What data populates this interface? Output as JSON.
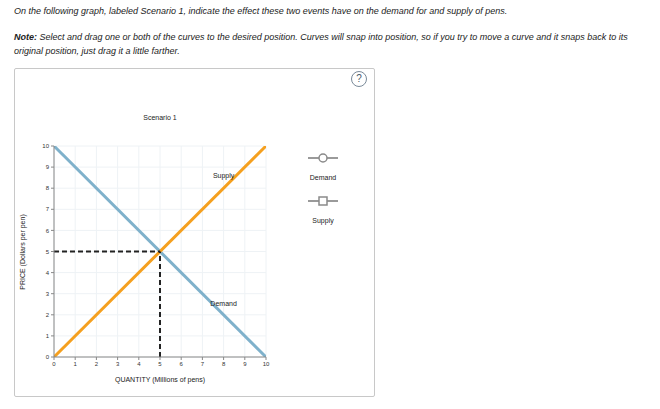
{
  "instruction": "On the following graph, labeled Scenario 1, indicate the effect these two events have on the demand for and supply of pens.",
  "note_label": "Note:",
  "note": "Select and drag one or both of the curves to the desired position. Curves will snap into position, so if you try to move a curve and it snaps back to its original position, just drag it a little farther.",
  "help": "?",
  "chart_data": {
    "type": "line",
    "title": "Scenario 1",
    "x_label": "QUANTITY (Millions of pens)",
    "y_label": "PRICE (Dollars per pen)",
    "xlim": [
      0,
      10
    ],
    "ylim": [
      0,
      10
    ],
    "xticks": [
      0,
      1,
      2,
      3,
      4,
      5,
      6,
      7,
      8,
      9,
      10
    ],
    "yticks": [
      0,
      1,
      2,
      3,
      4,
      5,
      6,
      7,
      8,
      9,
      10
    ],
    "grid": true,
    "legend": "right",
    "series": [
      {
        "name": "Demand",
        "color": "#7fb1cb",
        "marker": "circle",
        "x": [
          0,
          10
        ],
        "values": [
          10,
          0
        ]
      },
      {
        "name": "Supply",
        "color": "#f5a01f",
        "marker": "square",
        "x": [
          0,
          10
        ],
        "values": [
          0,
          10
        ]
      }
    ],
    "annotations": [
      {
        "text": "Supply",
        "x": 8.0,
        "y": 8.6
      },
      {
        "text": "Demand",
        "x": 8.0,
        "y": 2.55
      }
    ],
    "equilibrium": {
      "x": 5,
      "y": 5
    }
  }
}
